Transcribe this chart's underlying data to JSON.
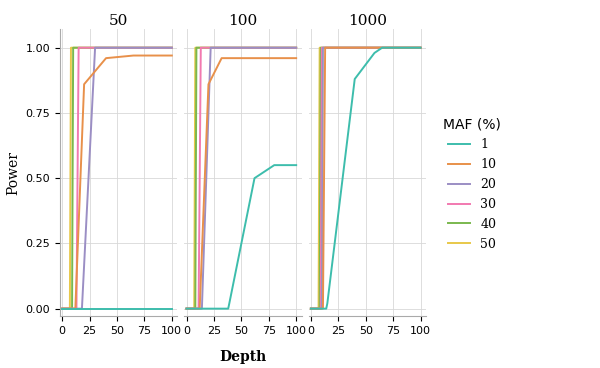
{
  "panels": [
    "50",
    "100",
    "1000"
  ],
  "maf_labels": [
    "1",
    "10",
    "20",
    "30",
    "40",
    "50"
  ],
  "maf_colors": [
    "#3dbdac",
    "#e8904a",
    "#9b8ec4",
    "#f279b0",
    "#7ab84e",
    "#e8c84a"
  ],
  "ylabel": "Power",
  "xlabel": "Depth",
  "legend_title": "MAF (%)",
  "yticks": [
    0.0,
    0.25,
    0.5,
    0.75,
    1.0
  ],
  "ytick_labels": [
    "0.00",
    "0.25",
    "0.50",
    "0.75",
    "1.00"
  ],
  "xticks": [
    0,
    25,
    50,
    75,
    100
  ],
  "xlim": [
    -2,
    105
  ],
  "ylim": [
    -0.03,
    1.07
  ],
  "panel_50": {
    "maf_50": {
      "x": [
        0,
        7,
        8,
        100
      ],
      "y": [
        0.0,
        0.0,
        1.0,
        1.0
      ]
    },
    "maf_40": {
      "x": [
        0,
        9,
        10,
        100
      ],
      "y": [
        0.0,
        0.0,
        1.0,
        1.0
      ]
    },
    "maf_30": {
      "x": [
        0,
        13,
        15,
        100
      ],
      "y": [
        0.0,
        0.0,
        1.0,
        1.0
      ]
    },
    "maf_20": {
      "x": [
        0,
        18,
        30,
        100
      ],
      "y": [
        0.0,
        0.0,
        1.0,
        1.0
      ]
    },
    "maf_10": {
      "x": [
        0,
        12,
        20,
        40,
        65,
        100
      ],
      "y": [
        0.0,
        0.0,
        0.86,
        0.96,
        0.97,
        0.97
      ]
    },
    "maf_1": {
      "x": [
        0,
        100
      ],
      "y": [
        0.0,
        0.0
      ]
    }
  },
  "panel_100": {
    "maf_50": {
      "x": [
        0,
        7,
        8,
        100
      ],
      "y": [
        0.0,
        0.0,
        1.0,
        1.0
      ]
    },
    "maf_40": {
      "x": [
        0,
        8,
        9,
        100
      ],
      "y": [
        0.0,
        0.0,
        1.0,
        1.0
      ]
    },
    "maf_30": {
      "x": [
        0,
        11,
        13,
        100
      ],
      "y": [
        0.0,
        0.0,
        1.0,
        1.0
      ]
    },
    "maf_20": {
      "x": [
        0,
        14,
        22,
        100
      ],
      "y": [
        0.0,
        0.0,
        1.0,
        1.0
      ]
    },
    "maf_10": {
      "x": [
        0,
        12,
        20,
        32,
        100
      ],
      "y": [
        0.0,
        0.0,
        0.86,
        0.96,
        0.96
      ]
    },
    "maf_1": {
      "x": [
        0,
        38,
        39,
        62,
        80,
        100
      ],
      "y": [
        0.0,
        0.0,
        0.02,
        0.5,
        0.55,
        0.55
      ]
    }
  },
  "panel_1000": {
    "maf_50": {
      "x": [
        0,
        7,
        8,
        100
      ],
      "y": [
        0.0,
        0.0,
        1.0,
        1.0
      ]
    },
    "maf_40": {
      "x": [
        0,
        8,
        9,
        100
      ],
      "y": [
        0.0,
        0.0,
        1.0,
        1.0
      ]
    },
    "maf_30": {
      "x": [
        0,
        9,
        10,
        100
      ],
      "y": [
        0.0,
        0.0,
        1.0,
        1.0
      ]
    },
    "maf_20": {
      "x": [
        0,
        10,
        11,
        100
      ],
      "y": [
        0.0,
        0.0,
        1.0,
        1.0
      ]
    },
    "maf_10": {
      "x": [
        0,
        11,
        13,
        100
      ],
      "y": [
        0.0,
        0.0,
        1.0,
        1.0
      ]
    },
    "maf_1": {
      "x": [
        0,
        14,
        15,
        40,
        58,
        65,
        100
      ],
      "y": [
        0.0,
        0.0,
        0.02,
        0.88,
        0.98,
        1.0,
        1.0
      ]
    }
  },
  "background_color": "#ffffff",
  "grid_color": "#d8d8d8",
  "title_fontsize": 11,
  "label_fontsize": 10,
  "tick_fontsize": 8,
  "legend_title_fontsize": 10,
  "legend_fontsize": 9,
  "linewidth": 1.4
}
